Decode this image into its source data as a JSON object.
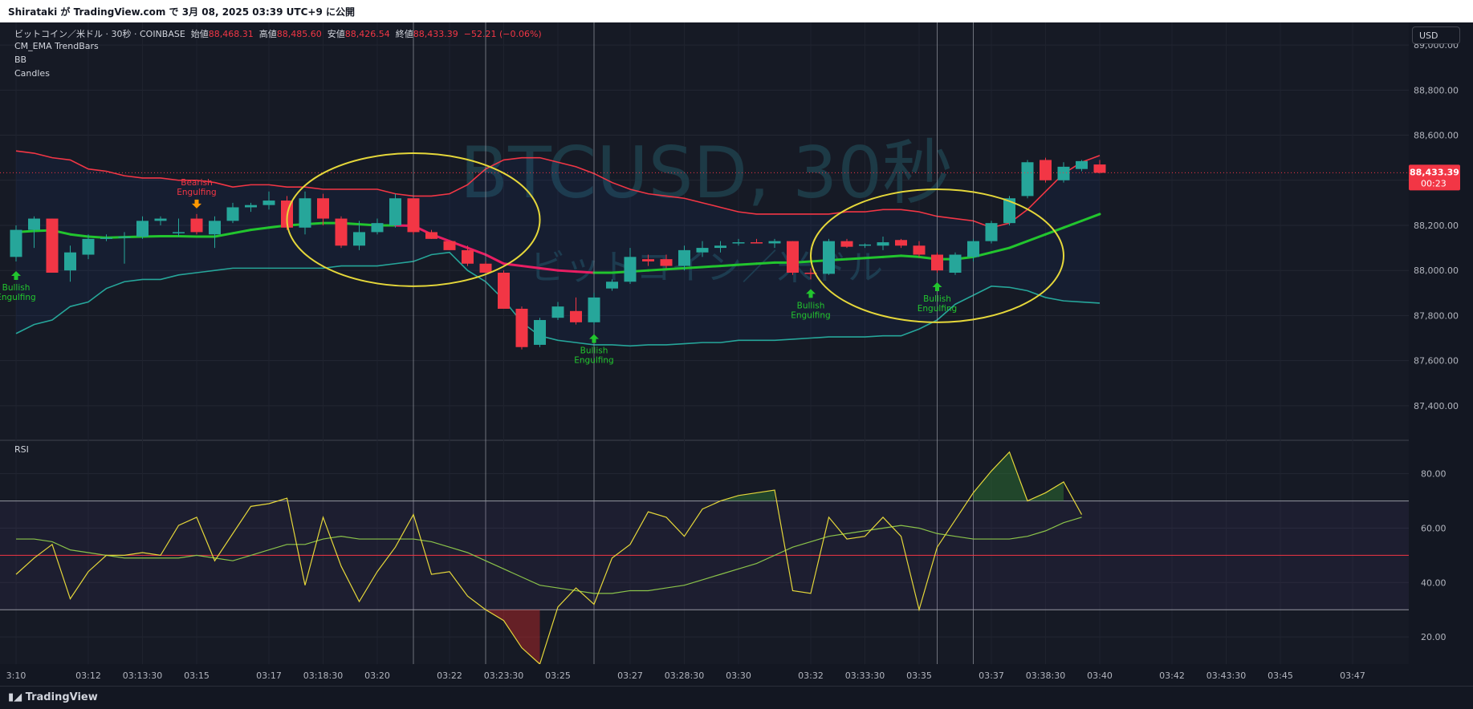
{
  "header": {
    "publish_text": "Shirataki が TradingView.com で 3月 08, 2025 03:39 UTC+9 に公開"
  },
  "legend": {
    "symbol": "ビットコイン／米ドル · 30秒 · COINBASE",
    "open_label": "始値",
    "open_value": "88,468.31",
    "high_label": "高値",
    "high_value": "88,485.60",
    "low_label": "安値",
    "low_value": "88,426.54",
    "close_label": "終値",
    "close_value": "88,433.39",
    "change_value": "−52.21 (−0.06%)",
    "indicators": [
      "CM_EMA TrendBars",
      "BB",
      "Candles"
    ]
  },
  "watermark": {
    "main": "BTCUSD, 30秒",
    "sub": "ビットコイン／米ドル"
  },
  "currency_button": "USD",
  "price_badge": {
    "price": "88,433.39",
    "countdown": "00:23"
  },
  "rsi_label": "RSI",
  "footer": {
    "logo_text": "TradingView"
  },
  "colors": {
    "background": "#131722",
    "bull": "#26a69a",
    "bear": "#f23645",
    "bb_upper": "#f23645",
    "bb_lower": "#26a69a",
    "basis_bull": "#22c52e",
    "basis_bear": "#e91e63",
    "rsi": "#e5d73a",
    "rsi_ma": "#8bc34a",
    "annotation_circle": "#e5d73a"
  },
  "chart_data": [
    {
      "type": "candlestick",
      "title": "BTCUSD, 30秒",
      "ylim": [
        87250,
        89100
      ],
      "y_ticks": [
        "89,000.00",
        "88,800.00",
        "88,600.00",
        "88,400.00",
        "88,200.00",
        "88,000.00",
        "87,800.00",
        "87,600.00",
        "87,400.00"
      ],
      "y_tick_values": [
        89000,
        88800,
        88600,
        88400,
        88200,
        88000,
        87800,
        87600,
        87400
      ],
      "x_ticks": [
        "3:10",
        "03:12",
        "03:13:30",
        "03:15",
        "03:17",
        "03:18:30",
        "03:20",
        "03:22",
        "03:23:30",
        "03:25",
        "03:27",
        "03:28:30",
        "03:30",
        "03:32",
        "03:33:30",
        "03:35",
        "03:37",
        "03:38:30",
        "03:40",
        "03:42",
        "03:43:30",
        "03:45",
        "03:47"
      ],
      "x_tick_index": [
        0,
        4,
        7,
        10,
        14,
        17,
        20,
        24,
        27,
        30,
        34,
        37,
        40,
        44,
        47,
        50,
        54,
        57,
        60,
        64,
        67,
        70,
        74
      ],
      "candles": [
        {
          "o": 88060,
          "h": 88200,
          "l": 88040,
          "c": 88180
        },
        {
          "o": 88180,
          "h": 88240,
          "l": 88100,
          "c": 88230
        },
        {
          "o": 88230,
          "h": 88230,
          "l": 87990,
          "c": 87990
        },
        {
          "o": 88000,
          "h": 88110,
          "l": 87950,
          "c": 88080
        },
        {
          "o": 88070,
          "h": 88160,
          "l": 88050,
          "c": 88140
        },
        {
          "o": 88140,
          "h": 88160,
          "l": 88130,
          "c": 88145
        },
        {
          "o": 88145,
          "h": 88170,
          "l": 88030,
          "c": 88150
        },
        {
          "o": 88150,
          "h": 88240,
          "l": 88140,
          "c": 88220
        },
        {
          "o": 88220,
          "h": 88240,
          "l": 88200,
          "c": 88230
        },
        {
          "o": 88170,
          "h": 88230,
          "l": 88150,
          "c": 88170
        },
        {
          "o": 88230,
          "h": 88250,
          "l": 88160,
          "c": 88170
        },
        {
          "o": 88160,
          "h": 88240,
          "l": 88100,
          "c": 88220
        },
        {
          "o": 88220,
          "h": 88300,
          "l": 88210,
          "c": 88280
        },
        {
          "o": 88280,
          "h": 88300,
          "l": 88260,
          "c": 88290
        },
        {
          "o": 88290,
          "h": 88350,
          "l": 88270,
          "c": 88310
        },
        {
          "o": 88310,
          "h": 88330,
          "l": 88180,
          "c": 88190
        },
        {
          "o": 88190,
          "h": 88350,
          "l": 88160,
          "c": 88320
        },
        {
          "o": 88320,
          "h": 88340,
          "l": 88200,
          "c": 88230
        },
        {
          "o": 88230,
          "h": 88240,
          "l": 88100,
          "c": 88110
        },
        {
          "o": 88110,
          "h": 88220,
          "l": 88090,
          "c": 88170
        },
        {
          "o": 88170,
          "h": 88230,
          "l": 88160,
          "c": 88210
        },
        {
          "o": 88200,
          "h": 88340,
          "l": 88190,
          "c": 88320
        },
        {
          "o": 88320,
          "h": 88320,
          "l": 88160,
          "c": 88170
        },
        {
          "o": 88170,
          "h": 88180,
          "l": 88140,
          "c": 88140
        },
        {
          "o": 88130,
          "h": 88130,
          "l": 88090,
          "c": 88090
        },
        {
          "o": 88090,
          "h": 88110,
          "l": 88020,
          "c": 88030
        },
        {
          "o": 88030,
          "h": 88040,
          "l": 87990,
          "c": 87990
        },
        {
          "o": 87990,
          "h": 88000,
          "l": 87830,
          "c": 87830
        },
        {
          "o": 87830,
          "h": 87840,
          "l": 87650,
          "c": 87660
        },
        {
          "o": 87670,
          "h": 87790,
          "l": 87660,
          "c": 87780
        },
        {
          "o": 87790,
          "h": 87860,
          "l": 87780,
          "c": 87840
        },
        {
          "o": 87820,
          "h": 87880,
          "l": 87760,
          "c": 87770
        },
        {
          "o": 87770,
          "h": 87900,
          "l": 87760,
          "c": 87880
        },
        {
          "o": 87920,
          "h": 87960,
          "l": 87910,
          "c": 87950
        },
        {
          "o": 87950,
          "h": 88100,
          "l": 87940,
          "c": 88060
        },
        {
          "o": 88050,
          "h": 88070,
          "l": 88020,
          "c": 88040
        },
        {
          "o": 88050,
          "h": 88070,
          "l": 88010,
          "c": 88020
        },
        {
          "o": 88020,
          "h": 88110,
          "l": 88000,
          "c": 88090
        },
        {
          "o": 88080,
          "h": 88130,
          "l": 88060,
          "c": 88100
        },
        {
          "o": 88100,
          "h": 88130,
          "l": 88080,
          "c": 88110
        },
        {
          "o": 88120,
          "h": 88140,
          "l": 88110,
          "c": 88125
        },
        {
          "o": 88125,
          "h": 88140,
          "l": 88120,
          "c": 88120
        },
        {
          "o": 88120,
          "h": 88140,
          "l": 88100,
          "c": 88130
        },
        {
          "o": 88130,
          "h": 88130,
          "l": 87980,
          "c": 87990
        },
        {
          "o": 87990,
          "h": 88010,
          "l": 87960,
          "c": 87985
        },
        {
          "o": 87985,
          "h": 88140,
          "l": 87980,
          "c": 88130
        },
        {
          "o": 88130,
          "h": 88140,
          "l": 88100,
          "c": 88105
        },
        {
          "o": 88110,
          "h": 88120,
          "l": 88100,
          "c": 88115
        },
        {
          "o": 88110,
          "h": 88150,
          "l": 88090,
          "c": 88125
        },
        {
          "o": 88135,
          "h": 88140,
          "l": 88100,
          "c": 88110
        },
        {
          "o": 88110,
          "h": 88130,
          "l": 88060,
          "c": 88070
        },
        {
          "o": 88070,
          "h": 88080,
          "l": 87990,
          "c": 88000
        },
        {
          "o": 87990,
          "h": 88080,
          "l": 87980,
          "c": 88070
        },
        {
          "o": 88060,
          "h": 88140,
          "l": 88040,
          "c": 88130
        },
        {
          "o": 88130,
          "h": 88220,
          "l": 88120,
          "c": 88210
        },
        {
          "o": 88210,
          "h": 88330,
          "l": 88200,
          "c": 88320
        },
        {
          "o": 88330,
          "h": 88490,
          "l": 88320,
          "c": 88480
        },
        {
          "o": 88490,
          "h": 88500,
          "l": 88390,
          "c": 88400
        },
        {
          "o": 88400,
          "h": 88480,
          "l": 88390,
          "c": 88460
        },
        {
          "o": 88450,
          "h": 88490,
          "l": 88440,
          "c": 88485
        },
        {
          "o": 88470,
          "h": 88490,
          "l": 88430,
          "c": 88433
        }
      ],
      "bb_upper": [
        88530,
        88520,
        88500,
        88490,
        88450,
        88440,
        88420,
        88410,
        88410,
        88400,
        88400,
        88390,
        88370,
        88380,
        88380,
        88370,
        88370,
        88360,
        88360,
        88360,
        88360,
        88340,
        88330,
        88330,
        88340,
        88380,
        88450,
        88490,
        88500,
        88500,
        88480,
        88460,
        88430,
        88390,
        88360,
        88340,
        88330,
        88320,
        88300,
        88280,
        88260,
        88250,
        88250,
        88250,
        88250,
        88250,
        88260,
        88260,
        88270,
        88270,
        88260,
        88240,
        88230,
        88220,
        88190,
        88210,
        88270,
        88350,
        88430,
        88480,
        88510
      ],
      "bb_lower": [
        87720,
        87760,
        87780,
        87840,
        87860,
        87920,
        87950,
        87960,
        87960,
        87980,
        87990,
        88000,
        88010,
        88010,
        88010,
        88010,
        88010,
        88010,
        88020,
        88020,
        88020,
        88030,
        88040,
        88070,
        88080,
        88000,
        87950,
        87870,
        87770,
        87710,
        87690,
        87680,
        87670,
        87670,
        87665,
        87670,
        87670,
        87675,
        87680,
        87680,
        87690,
        87690,
        87690,
        87695,
        87700,
        87705,
        87705,
        87705,
        87710,
        87710,
        87740,
        87780,
        87850,
        87890,
        87930,
        87925,
        87910,
        87880,
        87865,
        87860,
        87855
      ],
      "basis": [
        88170,
        88175,
        88178,
        88160,
        88150,
        88145,
        88148,
        88150,
        88152,
        88152,
        88150,
        88150,
        88165,
        88180,
        88190,
        88200,
        88205,
        88210,
        88210,
        88205,
        88200,
        88200,
        88198,
        88160,
        88130,
        88100,
        88070,
        88030,
        88020,
        88010,
        88000,
        87995,
        87990,
        87990,
        87995,
        88000,
        88005,
        88010,
        88015,
        88020,
        88025,
        88030,
        88035,
        88035,
        88040,
        88045,
        88050,
        88055,
        88060,
        88065,
        88060,
        88050,
        88050,
        88060,
        88080,
        88100,
        88130,
        88160,
        88190,
        88220,
        88250
      ],
      "basis_bear_range": [
        21,
        32
      ],
      "markers": [
        {
          "index": 0,
          "type": "bull",
          "label": [
            "Bullish",
            "Engulfing"
          ]
        },
        {
          "index": 10,
          "type": "bear",
          "label": [
            "Bearish",
            "Engulfing"
          ]
        },
        {
          "index": 32,
          "type": "bull",
          "label": [
            "Bullish",
            "Engulfing"
          ]
        },
        {
          "index": 44,
          "type": "bull",
          "label": [
            "Bullish",
            "Engulfing"
          ]
        },
        {
          "index": 51,
          "type": "bull",
          "label": [
            "Bullish",
            "Engulfing"
          ]
        }
      ],
      "vertical_lines": [
        22,
        26,
        32,
        51,
        53
      ],
      "circles": [
        {
          "cx_index": 22,
          "cy": 88225,
          "rx_bars": 7,
          "ry_price": 295
        },
        {
          "cx_index": 51,
          "cy": 88065,
          "rx_bars": 7,
          "ry_price": 295
        }
      ],
      "last_price": 88433.39
    },
    {
      "type": "line",
      "title": "RSI",
      "ylim": [
        10,
        92
      ],
      "y_ticks": [
        "80.00",
        "60.00",
        "40.00",
        "20.00"
      ],
      "y_tick_values": [
        80,
        60,
        40,
        20
      ],
      "bands": [
        70,
        50,
        30
      ],
      "series": [
        {
          "name": "RSI",
          "values": [
            43,
            49,
            54,
            34,
            44,
            50,
            50,
            51,
            50,
            61,
            64,
            48,
            58,
            68,
            69,
            71,
            39,
            64,
            46,
            33,
            44,
            53,
            65,
            43,
            44,
            35,
            30,
            26,
            16,
            10,
            31,
            38,
            32,
            49,
            54,
            66,
            64,
            57,
            67,
            70,
            72,
            73,
            74,
            37,
            36,
            64,
            56,
            57,
            64,
            57,
            30,
            53,
            63,
            73,
            81,
            88,
            70,
            73,
            77,
            65
          ]
        },
        {
          "name": "RSI MA",
          "values": [
            56,
            56,
            55,
            52,
            51,
            50,
            49,
            49,
            49,
            49,
            50,
            49,
            48,
            50,
            52,
            54,
            54,
            56,
            57,
            56,
            56,
            56,
            56,
            55,
            53,
            51,
            48,
            45,
            42,
            39,
            38,
            37,
            36,
            36,
            37,
            37,
            38,
            39,
            41,
            43,
            45,
            47,
            50,
            53,
            55,
            57,
            58,
            59,
            60,
            61,
            60,
            58,
            57,
            56,
            56,
            56,
            57,
            59,
            62,
            64
          ]
        }
      ]
    }
  ]
}
